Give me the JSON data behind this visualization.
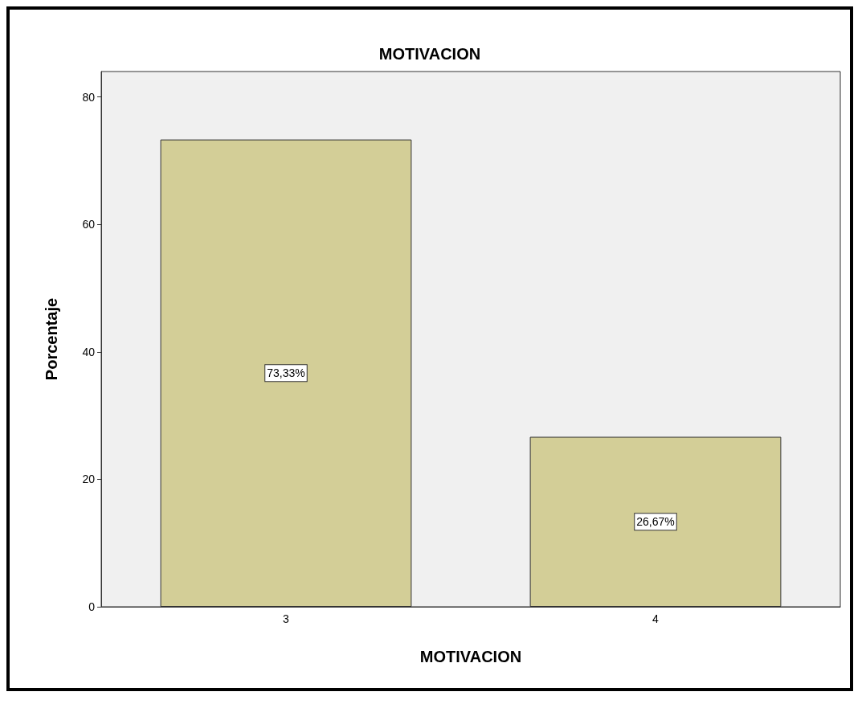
{
  "chart_data": {
    "type": "bar",
    "title": "MOTIVACION",
    "xlabel": "MOTIVACION",
    "ylabel": "Porcentaje",
    "categories": [
      "3",
      "4"
    ],
    "values": [
      73.33,
      26.67
    ],
    "value_labels": [
      "73,33%",
      "26,67%"
    ],
    "color": "#d3ce97",
    "ylim": [
      0,
      84
    ],
    "yticks": [
      0,
      20,
      40,
      60,
      80
    ],
    "grid": false
  }
}
